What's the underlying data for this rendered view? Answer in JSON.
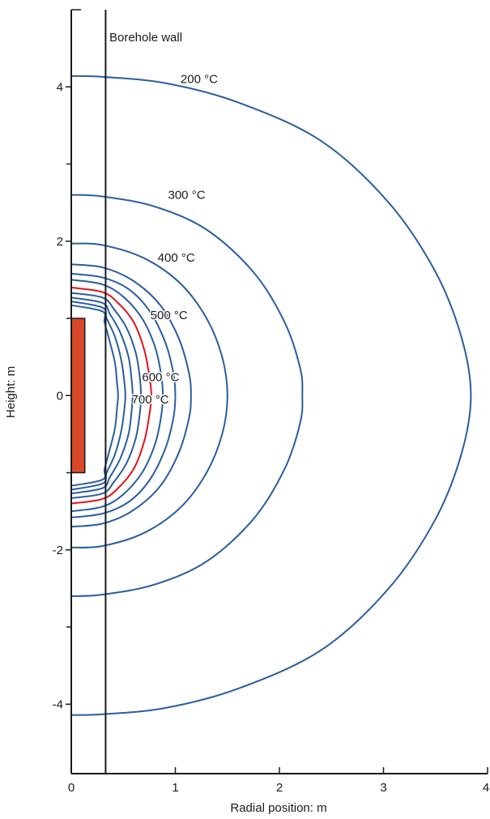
{
  "chart_data": {
    "type": "line",
    "title": "",
    "xlabel": "Radial position: m",
    "ylabel": "Height: m",
    "xlim": [
      0,
      4
    ],
    "ylim": [
      -4.9,
      5.0
    ],
    "x_ticks": [
      0,
      1,
      2,
      3,
      4
    ],
    "x_tick_labels": [
      "0",
      "1",
      "2",
      "3",
      "4"
    ],
    "y_ticks": [
      -4,
      -2,
      0,
      2,
      4
    ],
    "y_tick_labels": [
      "-4",
      "-2",
      "0",
      "2",
      "4"
    ],
    "y_minor_ticks": [
      -3,
      -1,
      1,
      3
    ],
    "grid": false,
    "borehole_wall": {
      "x": 0.33,
      "label": "Borehole wall"
    },
    "heat_source": {
      "x0": 0,
      "x1": 0.13,
      "y0": -1.0,
      "y1": 1.0,
      "color": "#d9472b"
    },
    "series": [
      {
        "name": "200 °C",
        "label": "200 °C",
        "color": "#2a5d9f",
        "label_x": 1.05,
        "label_y": 4.1,
        "points": [
          [
            0,
            4.14
          ],
          [
            0.3,
            4.13
          ],
          [
            0.9,
            4.05
          ],
          [
            1.6,
            3.8
          ],
          [
            2.4,
            3.3
          ],
          [
            3.05,
            2.5
          ],
          [
            3.5,
            1.6
          ],
          [
            3.75,
            0.75
          ],
          [
            3.84,
            0
          ],
          [
            3.75,
            -0.75
          ],
          [
            3.5,
            -1.6
          ],
          [
            3.05,
            -2.5
          ],
          [
            2.4,
            -3.3
          ],
          [
            1.6,
            -3.8
          ],
          [
            0.9,
            -4.05
          ],
          [
            0.3,
            -4.13
          ],
          [
            0,
            -4.14
          ]
        ]
      },
      {
        "name": "300 °C",
        "label": "300 °C",
        "color": "#2a5d9f",
        "label_x": 0.93,
        "label_y": 2.6,
        "points": [
          [
            0,
            2.6
          ],
          [
            0.3,
            2.58
          ],
          [
            0.8,
            2.45
          ],
          [
            1.3,
            2.15
          ],
          [
            1.75,
            1.6
          ],
          [
            2.05,
            0.95
          ],
          [
            2.2,
            0.35
          ],
          [
            2.22,
            0
          ],
          [
            2.2,
            -0.35
          ],
          [
            2.05,
            -0.95
          ],
          [
            1.75,
            -1.6
          ],
          [
            1.3,
            -2.15
          ],
          [
            0.8,
            -2.45
          ],
          [
            0.3,
            -2.58
          ],
          [
            0,
            -2.6
          ]
        ]
      },
      {
        "name": "400 °C",
        "label": "400 °C",
        "color": "#2a5d9f",
        "label_x": 0.83,
        "label_y": 1.79,
        "points": [
          [
            0,
            1.97
          ],
          [
            0.3,
            1.95
          ],
          [
            0.7,
            1.78
          ],
          [
            1.05,
            1.45
          ],
          [
            1.3,
            1.0
          ],
          [
            1.45,
            0.5
          ],
          [
            1.5,
            0
          ],
          [
            1.45,
            -0.5
          ],
          [
            1.3,
            -1.0
          ],
          [
            1.05,
            -1.45
          ],
          [
            0.7,
            -1.78
          ],
          [
            0.3,
            -1.95
          ],
          [
            0,
            -1.97
          ]
        ]
      },
      {
        "name": "500 °C",
        "label": "500 °C",
        "color": "#2a5d9f",
        "label_x": 0.76,
        "label_y": 1.04,
        "points": [
          [
            0,
            1.7
          ],
          [
            0.3,
            1.66
          ],
          [
            0.58,
            1.5
          ],
          [
            0.85,
            1.18
          ],
          [
            1.03,
            0.75
          ],
          [
            1.13,
            0.3
          ],
          [
            1.15,
            0
          ],
          [
            1.13,
            -0.3
          ],
          [
            1.03,
            -0.75
          ],
          [
            0.85,
            -1.18
          ],
          [
            0.58,
            -1.5
          ],
          [
            0.3,
            -1.66
          ],
          [
            0,
            -1.7
          ]
        ]
      },
      {
        "name": "",
        "label": "",
        "color": "#2a5d9f",
        "points": [
          [
            0,
            1.58
          ],
          [
            0.3,
            1.53
          ],
          [
            0.55,
            1.38
          ],
          [
            0.75,
            1.1
          ],
          [
            0.9,
            0.7
          ],
          [
            0.98,
            0.3
          ],
          [
            1.0,
            0
          ],
          [
            0.98,
            -0.3
          ],
          [
            0.9,
            -0.7
          ],
          [
            0.75,
            -1.1
          ],
          [
            0.55,
            -1.38
          ],
          [
            0.3,
            -1.53
          ],
          [
            0,
            -1.58
          ]
        ]
      },
      {
        "name": "",
        "label": "",
        "color": "#2a5d9f",
        "points": [
          [
            0,
            1.5
          ],
          [
            0.3,
            1.44
          ],
          [
            0.5,
            1.28
          ],
          [
            0.68,
            1.0
          ],
          [
            0.8,
            0.65
          ],
          [
            0.86,
            0.3
          ],
          [
            0.88,
            0
          ],
          [
            0.86,
            -0.3
          ],
          [
            0.8,
            -0.65
          ],
          [
            0.68,
            -1.0
          ],
          [
            0.5,
            -1.28
          ],
          [
            0.3,
            -1.44
          ],
          [
            0,
            -1.5
          ]
        ]
      },
      {
        "name": "600 °C",
        "label": "600 °C",
        "color": "#e0141e",
        "label_x": 0.68,
        "label_y": 0.24,
        "points": [
          [
            0,
            1.4
          ],
          [
            0.3,
            1.34
          ],
          [
            0.45,
            1.2
          ],
          [
            0.6,
            0.95
          ],
          [
            0.7,
            0.6
          ],
          [
            0.75,
            0.25
          ],
          [
            0.77,
            0
          ],
          [
            0.75,
            -0.25
          ],
          [
            0.7,
            -0.6
          ],
          [
            0.6,
            -0.95
          ],
          [
            0.45,
            -1.2
          ],
          [
            0.3,
            -1.34
          ],
          [
            0,
            -1.4
          ]
        ]
      },
      {
        "name": "",
        "label": "",
        "color": "#2a5d9f",
        "points": [
          [
            0,
            1.33
          ],
          [
            0.3,
            1.27
          ],
          [
            0.41,
            1.12
          ],
          [
            0.53,
            0.88
          ],
          [
            0.62,
            0.55
          ],
          [
            0.66,
            0.22
          ],
          [
            0.67,
            0
          ],
          [
            0.66,
            -0.22
          ],
          [
            0.62,
            -0.55
          ],
          [
            0.53,
            -0.88
          ],
          [
            0.41,
            -1.12
          ],
          [
            0.3,
            -1.27
          ],
          [
            0,
            -1.33
          ]
        ]
      },
      {
        "name": "",
        "label": "",
        "color": "#2a5d9f",
        "points": [
          [
            0,
            1.27
          ],
          [
            0.3,
            1.2
          ],
          [
            0.37,
            1.06
          ],
          [
            0.47,
            0.82
          ],
          [
            0.55,
            0.5
          ],
          [
            0.58,
            0.2
          ],
          [
            0.59,
            0
          ],
          [
            0.58,
            -0.2
          ],
          [
            0.55,
            -0.5
          ],
          [
            0.47,
            -0.82
          ],
          [
            0.37,
            -1.06
          ],
          [
            0.3,
            -1.2
          ],
          [
            0,
            -1.27
          ]
        ]
      },
      {
        "name": "700 °C",
        "label": "700 °C",
        "color": "#2a5d9f",
        "label_x": 0.58,
        "label_y": -0.05,
        "points": [
          [
            0,
            1.22
          ],
          [
            0.3,
            1.14
          ],
          [
            0.34,
            1.0
          ],
          [
            0.42,
            0.76
          ],
          [
            0.48,
            0.46
          ],
          [
            0.51,
            0.18
          ],
          [
            0.52,
            0
          ],
          [
            0.51,
            -0.18
          ],
          [
            0.48,
            -0.46
          ],
          [
            0.42,
            -0.76
          ],
          [
            0.34,
            -1.0
          ],
          [
            0.3,
            -1.14
          ],
          [
            0,
            -1.22
          ]
        ]
      },
      {
        "name": "",
        "label": "",
        "color": "#2a5d9f",
        "points": [
          [
            0,
            1.17
          ],
          [
            0.3,
            1.09
          ],
          [
            0.32,
            0.95
          ],
          [
            0.37,
            0.7
          ],
          [
            0.42,
            0.42
          ],
          [
            0.44,
            0.16
          ],
          [
            0.45,
            0
          ],
          [
            0.44,
            -0.16
          ],
          [
            0.42,
            -0.42
          ],
          [
            0.37,
            -0.7
          ],
          [
            0.32,
            -0.95
          ],
          [
            0.3,
            -1.09
          ],
          [
            0,
            -1.17
          ]
        ]
      }
    ]
  }
}
